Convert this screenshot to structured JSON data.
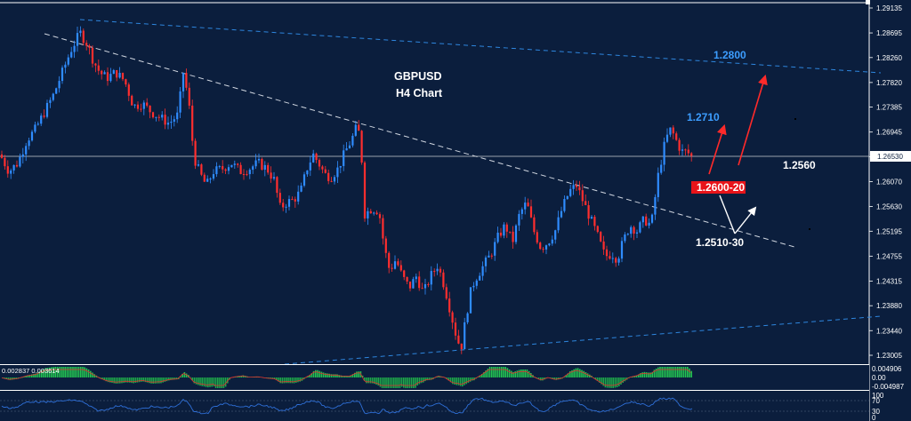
{
  "chart_data": {
    "type": "candlestick",
    "title_line1": "GBPUSD",
    "title_line2": "H4 Chart",
    "y_ticks": [
      "1.29135",
      "1.28695",
      "1.28260",
      "1.27820",
      "1.27385",
      "1.26945",
      "1.26510",
      "1.26070",
      "1.25630",
      "1.25195",
      "1.24755",
      "1.24315",
      "1.23880",
      "1.23440",
      "1.23005"
    ],
    "ylim": [
      1.2295,
      1.2925
    ],
    "current_price": "1.26530",
    "annotations": {
      "target_1": "1.2800",
      "target_2": "1.2710",
      "level_pivot": "1.2560",
      "support_zone": "1.2600-20",
      "support_low": "1.2510-30"
    },
    "close_path": [
      [
        0,
        1.2655
      ],
      [
        10,
        1.2625
      ],
      [
        20,
        1.264
      ],
      [
        30,
        1.268
      ],
      [
        40,
        1.27
      ],
      [
        50,
        1.273
      ],
      [
        60,
        1.276
      ],
      [
        70,
        1.28
      ],
      [
        80,
        1.284
      ],
      [
        90,
        1.287
      ],
      [
        98,
        1.285
      ],
      [
        105,
        1.282
      ],
      [
        112,
        1.28
      ],
      [
        120,
        1.279
      ],
      [
        130,
        1.28
      ],
      [
        140,
        1.2785
      ],
      [
        150,
        1.274
      ],
      [
        160,
        1.2745
      ],
      [
        170,
        1.273
      ],
      [
        180,
        1.272
      ],
      [
        190,
        1.271
      ],
      [
        200,
        1.2725
      ],
      [
        206,
        1.28
      ],
      [
        212,
        1.275
      ],
      [
        218,
        1.265
      ],
      [
        225,
        1.262
      ],
      [
        232,
        1.26
      ],
      [
        240,
        1.2625
      ],
      [
        250,
        1.263
      ],
      [
        260,
        1.264
      ],
      [
        270,
        1.2625
      ],
      [
        280,
        1.263
      ],
      [
        290,
        1.264
      ],
      [
        300,
        1.263
      ],
      [
        308,
        1.261
      ],
      [
        315,
        1.256
      ],
      [
        322,
        1.257
      ],
      [
        330,
        1.2575
      ],
      [
        338,
        1.259
      ],
      [
        345,
        1.263
      ],
      [
        352,
        1.2655
      ],
      [
        358,
        1.264
      ],
      [
        365,
        1.262
      ],
      [
        372,
        1.2615
      ],
      [
        380,
        1.263
      ],
      [
        388,
        1.266
      ],
      [
        395,
        1.268
      ],
      [
        400,
        1.27
      ],
      [
        405,
        1.269
      ],
      [
        410,
        1.255
      ],
      [
        418,
        1.256
      ],
      [
        426,
        1.2555
      ],
      [
        432,
        1.249
      ],
      [
        438,
        1.245
      ],
      [
        445,
        1.247
      ],
      [
        452,
        1.244
      ],
      [
        460,
        1.242
      ],
      [
        468,
        1.244
      ],
      [
        476,
        1.241
      ],
      [
        484,
        1.244
      ],
      [
        492,
        1.246
      ],
      [
        500,
        1.242
      ],
      [
        506,
        1.238
      ],
      [
        512,
        1.234
      ],
      [
        518,
        1.231
      ],
      [
        524,
        1.237
      ],
      [
        530,
        1.242
      ],
      [
        536,
        1.244
      ],
      [
        544,
        1.246
      ],
      [
        552,
        1.248
      ],
      [
        560,
        1.251
      ],
      [
        568,
        1.253
      ],
      [
        576,
        1.25
      ],
      [
        584,
        1.255
      ],
      [
        592,
        1.257
      ],
      [
        600,
        1.252
      ],
      [
        608,
        1.249
      ],
      [
        616,
        1.25
      ],
      [
        624,
        1.252
      ],
      [
        632,
        1.256
      ],
      [
        640,
        1.259
      ],
      [
        648,
        1.26
      ],
      [
        656,
        1.257
      ],
      [
        664,
        1.254
      ],
      [
        672,
        1.251
      ],
      [
        680,
        1.2475
      ],
      [
        688,
        1.248
      ],
      [
        694,
        1.247
      ],
      [
        700,
        1.25
      ],
      [
        708,
        1.253
      ],
      [
        716,
        1.252
      ],
      [
        724,
        1.254
      ],
      [
        732,
        1.253
      ],
      [
        740,
        1.262
      ],
      [
        748,
        1.268
      ],
      [
        754,
        1.27
      ],
      [
        760,
        1.268
      ],
      [
        766,
        1.266
      ],
      [
        772,
        1.266
      ],
      [
        778,
        1.265
      ]
    ],
    "oscillator_1": {
      "label": "0.002837 0.003614",
      "ticks": [
        "0.004906",
        "0.00",
        "-0.004987"
      ]
    },
    "oscillator_2": {
      "ticks": [
        "100",
        "70",
        "30",
        "0"
      ]
    }
  }
}
